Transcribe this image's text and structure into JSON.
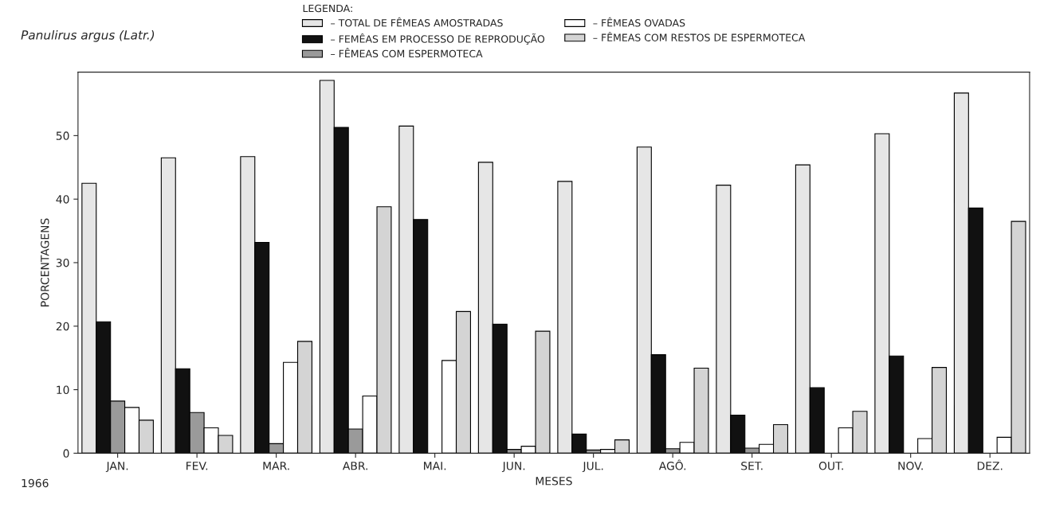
{
  "chart_data": {
    "type": "bar",
    "title": "Panulirus argus (Latr.)",
    "legend_title": "LEGENDA:",
    "xlabel": "MESES",
    "ylabel": "PORCENTAGENS",
    "annotations": [
      "1966"
    ],
    "categories": [
      "JAN.",
      "FEV.",
      "MAR.",
      "ABR.",
      "MAI.",
      "JUN.",
      "JUL.",
      "AGÔ.",
      "SET.",
      "OUT.",
      "NOV.",
      "DEZ."
    ],
    "series": [
      {
        "name": "– TOTAL DE FÊMEAS AMOSTRADAS",
        "color": "#e6e6e6",
        "values": [
          42.5,
          46.5,
          46.7,
          58.7,
          51.5,
          45.8,
          42.8,
          48.2,
          42.2,
          45.4,
          50.3,
          56.7
        ]
      },
      {
        "name": "– FEMÊAS EM PROCESSO DE REPRODUÇÃO",
        "color": "#111111",
        "values": [
          20.7,
          13.3,
          33.2,
          51.3,
          36.8,
          20.3,
          3.0,
          15.5,
          6.0,
          10.3,
          15.3,
          38.6
        ]
      },
      {
        "name": "– FÊMEAS COM ESPERMOTECA",
        "color": "#9a9a9a",
        "values": [
          8.2,
          6.4,
          1.5,
          3.8,
          null,
          0.6,
          0.5,
          0.7,
          0.8,
          null,
          null,
          null
        ]
      },
      {
        "name": "– FÊMEAS OVADAS",
        "color": "#ffffff",
        "values": [
          7.2,
          4.0,
          14.3,
          9.0,
          14.6,
          1.1,
          0.6,
          1.7,
          1.4,
          4.0,
          2.3,
          2.5
        ]
      },
      {
        "name": "– FÊMEAS COM RESTOS DE ESPERMOTECA",
        "color": "#d4d4d4",
        "values": [
          5.2,
          2.8,
          17.6,
          38.8,
          22.3,
          19.2,
          2.1,
          13.4,
          4.5,
          6.6,
          13.5,
          36.5
        ]
      }
    ],
    "ylim": [
      0,
      60
    ],
    "yticks": [
      0,
      10,
      20,
      30,
      40,
      50
    ],
    "grid": false,
    "legend": "top"
  }
}
